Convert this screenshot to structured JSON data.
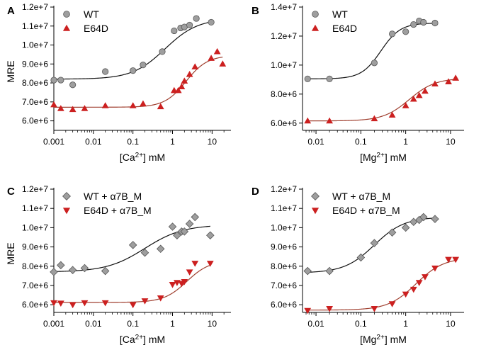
{
  "colors": {
    "wt_fill": "#9e9e9e",
    "wt_stroke": "#555555",
    "mut_fill": "#cc2020",
    "wt_line": "#111111",
    "mut_line": "#a04030",
    "axis": "#000000"
  },
  "chart_data": [
    {
      "panel_label": "A",
      "type": "scatter",
      "xscale": "log",
      "xlabel": "[Ca",
      "xlabel_sup": "2+",
      "xlabel_tail": "] mM",
      "ylabel": "MRE",
      "xlim": [
        0.001,
        30
      ],
      "ylim": [
        5500000,
        12000000
      ],
      "xticks": [
        0.001,
        0.01,
        0.1,
        1,
        10
      ],
      "xtick_labels": [
        "0.001",
        "0.01",
        "0.1",
        "1",
        "10"
      ],
      "yticks": [
        6000000,
        7000000,
        8000000,
        9000000,
        10000000,
        11000000,
        12000000
      ],
      "ytick_labels": [
        "6.0e+6",
        "7.0e+6",
        "8.0e+6",
        "9.0e+6",
        "1.0e+7",
        "1.1e+7",
        "1.2e+7"
      ],
      "legend_position": "top-left",
      "series": [
        {
          "name": "WT",
          "marker": "circle",
          "x": [
            0.001,
            0.0015,
            0.003,
            0.02,
            0.1,
            0.18,
            0.55,
            1.1,
            1.6,
            2.0,
            2.7,
            4.0,
            9.5
          ],
          "y": [
            8150000,
            8150000,
            7900000,
            8600000,
            8650000,
            8950000,
            9650000,
            10750000,
            10900000,
            10950000,
            11050000,
            11400000,
            11200000
          ],
          "fit": {
            "bottom": 8200000,
            "top": 11400000,
            "ec50": 0.65,
            "hill": 1.05
          }
        },
        {
          "name": "E64D",
          "marker": "triangle-up",
          "x": [
            0.001,
            0.0015,
            0.003,
            0.006,
            0.02,
            0.1,
            0.18,
            0.5,
            1.1,
            1.4,
            1.7,
            2.0,
            2.7,
            3.7,
            9.5,
            13.5,
            18.5
          ],
          "y": [
            6850000,
            6650000,
            6600000,
            6650000,
            6800000,
            6800000,
            6900000,
            6750000,
            7600000,
            7600000,
            7800000,
            8100000,
            8450000,
            8850000,
            9300000,
            9650000,
            9000000
          ],
          "fit": {
            "bottom": 6720000,
            "top": 9450000,
            "ec50": 2.2,
            "hill": 1.6
          }
        }
      ]
    },
    {
      "panel_label": "B",
      "type": "scatter",
      "xscale": "log",
      "xlabel": "[Mg",
      "xlabel_sup": "2+",
      "xlabel_tail": "] mM",
      "ylabel": "",
      "xlim": [
        0.005,
        20
      ],
      "ylim": [
        5500000,
        14000000
      ],
      "xticks": [
        0.01,
        0.1,
        1,
        10
      ],
      "xtick_labels": [
        "0.01",
        "0.1",
        "1",
        "10"
      ],
      "yticks": [
        6000000,
        8000000,
        10000000,
        12000000,
        14000000
      ],
      "ytick_labels": [
        "6.0e+6",
        "8.0e+6",
        "1.0e+7",
        "1.2e+7",
        "1.4e+7"
      ],
      "legend_position": "top-left",
      "series": [
        {
          "name": "WT",
          "marker": "circle",
          "x": [
            0.0065,
            0.02,
            0.2,
            0.5,
            1.0,
            1.5,
            2.0,
            2.5,
            4.5
          ],
          "y": [
            9050000,
            9050000,
            10150000,
            12150000,
            12300000,
            12800000,
            13050000,
            12950000,
            12900000
          ],
          "fit": {
            "bottom": 9050000,
            "top": 12900000,
            "ec50": 0.28,
            "hill": 2.0
          }
        },
        {
          "name": "E64D",
          "marker": "triangle-up",
          "x": [
            0.0065,
            0.02,
            0.2,
            0.5,
            1.0,
            1.5,
            2.0,
            2.7,
            4.5,
            9.0,
            13.0
          ],
          "y": [
            6150000,
            6150000,
            6300000,
            6550000,
            7200000,
            7650000,
            7900000,
            8200000,
            8700000,
            8850000,
            9100000
          ],
          "fit": {
            "bottom": 6150000,
            "top": 9100000,
            "ec50": 1.2,
            "hill": 1.5
          }
        }
      ]
    },
    {
      "panel_label": "C",
      "type": "scatter",
      "xscale": "log",
      "xlabel": "[Ca",
      "xlabel_sup": "2+",
      "xlabel_tail": "] mM",
      "ylabel": "MRE",
      "xlim": [
        0.001,
        30
      ],
      "ylim": [
        5600000,
        12000000
      ],
      "xticks": [
        0.001,
        0.01,
        0.1,
        1,
        10
      ],
      "xtick_labels": [
        "0.001",
        "0.01",
        "0.1",
        "1",
        "10"
      ],
      "yticks": [
        6000000,
        7000000,
        8000000,
        9000000,
        10000000,
        11000000,
        12000000
      ],
      "ytick_labels": [
        "6.0e+6",
        "7.0e+6",
        "8.0e+6",
        "9.0e+6",
        "1.0e+7",
        "1.1e+7",
        "1.2e+7"
      ],
      "legend_position": "top-left",
      "series": [
        {
          "name": "WT + α7B_M",
          "marker": "diamond",
          "x": [
            0.001,
            0.0015,
            0.003,
            0.006,
            0.02,
            0.1,
            0.2,
            0.5,
            1.0,
            1.3,
            1.7,
            2.0,
            2.7,
            3.7,
            9.0
          ],
          "y": [
            7700000,
            8050000,
            7800000,
            7900000,
            7750000,
            9100000,
            8700000,
            8900000,
            10050000,
            9600000,
            9800000,
            9800000,
            10200000,
            10550000,
            9600000
          ],
          "fit": {
            "bottom": 7700000,
            "top": 10150000,
            "ec50": 0.2,
            "hill": 0.9
          }
        },
        {
          "name": "E64D + α7B_M",
          "marker": "triangle-down",
          "x": [
            0.001,
            0.0015,
            0.003,
            0.006,
            0.02,
            0.1,
            0.2,
            0.5,
            1.0,
            1.3,
            1.7,
            2.0,
            2.7,
            3.7,
            9.0
          ],
          "y": [
            6100000,
            6080000,
            6000000,
            6100000,
            6100000,
            6000000,
            6200000,
            6350000,
            7050000,
            7150000,
            7100000,
            7200000,
            7700000,
            8150000,
            8150000
          ],
          "fit": {
            "bottom": 6120000,
            "top": 8300000,
            "ec50": 2.3,
            "hill": 1.5
          }
        }
      ]
    },
    {
      "panel_label": "D",
      "type": "scatter",
      "xscale": "log",
      "xlabel": "[Mg",
      "xlabel_sup": "2+",
      "xlabel_tail": "] mM",
      "ylabel": "",
      "xlim": [
        0.005,
        20
      ],
      "ylim": [
        5600000,
        12000000
      ],
      "xticks": [
        0.01,
        0.1,
        1,
        10
      ],
      "xtick_labels": [
        "0.01",
        "0.1",
        "1",
        "10"
      ],
      "yticks": [
        6000000,
        7000000,
        8000000,
        9000000,
        10000000,
        11000000,
        12000000
      ],
      "ytick_labels": [
        "6.0e+6",
        "7.0e+6",
        "8.0e+6",
        "9.0e+6",
        "1.0e+7",
        "1.1e+7",
        "1.2e+7"
      ],
      "legend_position": "top-left",
      "series": [
        {
          "name": "WT + α7B_M",
          "marker": "diamond",
          "x": [
            0.0065,
            0.02,
            0.1,
            0.2,
            0.5,
            1.0,
            1.5,
            2.0,
            2.5,
            4.5
          ],
          "y": [
            7750000,
            7750000,
            8450000,
            9200000,
            9750000,
            10000000,
            10300000,
            10400000,
            10550000,
            10450000
          ],
          "fit": {
            "bottom": 7650000,
            "top": 10550000,
            "ec50": 0.2,
            "hill": 1.3
          }
        },
        {
          "name": "E64D + α7B_M",
          "marker": "triangle-down",
          "x": [
            0.0065,
            0.02,
            0.2,
            0.5,
            1.0,
            1.5,
            2.0,
            2.7,
            4.5,
            9.0,
            13.0
          ],
          "y": [
            5700000,
            5800000,
            5800000,
            6050000,
            6550000,
            6800000,
            7150000,
            7450000,
            7900000,
            8350000,
            8350000
          ],
          "fit": {
            "bottom": 5720000,
            "top": 8450000,
            "ec50": 1.7,
            "hill": 1.4
          }
        }
      ]
    }
  ]
}
